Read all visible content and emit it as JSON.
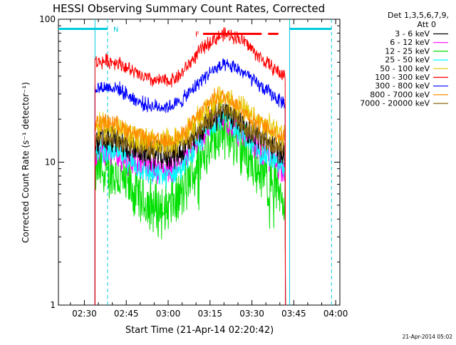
{
  "chart_data": {
    "type": "line",
    "title": "HESSI Observing Summary Count Rates, Corrected",
    "xlabel": "Start Time (21-Apr-14 02:20:42)",
    "ylabel": "Corrected Count Rate (s⁻¹ detector⁻¹)",
    "yscale": "log",
    "ylim": [
      1,
      100
    ],
    "xlim_minutes": [
      20.7,
      121.5
    ],
    "x_ticks": [
      {
        "label": "02:30",
        "minute": 30
      },
      {
        "label": "02:45",
        "minute": 45
      },
      {
        "label": "03:00",
        "minute": 60
      },
      {
        "label": "03:15",
        "minute": 75
      },
      {
        "label": "03:30",
        "minute": 90
      },
      {
        "label": "03:45",
        "minute": 105
      },
      {
        "label": "04:00",
        "minute": 120
      }
    ],
    "y_ticks": [
      {
        "label": "1",
        "value": 1
      },
      {
        "label": "10",
        "value": 10
      },
      {
        "label": "100",
        "value": 100
      }
    ],
    "legend_header": [
      "Det 1,3,5,6,7,9,",
      "Att 0"
    ],
    "legend_position": "right",
    "data_start_minute": 33.8,
    "data_end_minute": 102.0,
    "series": [
      {
        "name": "3 - 6 keV",
        "color": "#000000",
        "points": [
          [
            34,
            14
          ],
          [
            40,
            14.5
          ],
          [
            45,
            13
          ],
          [
            50,
            12
          ],
          [
            55,
            11
          ],
          [
            60,
            11
          ],
          [
            65,
            12
          ],
          [
            70,
            15
          ],
          [
            75,
            20
          ],
          [
            78,
            22
          ],
          [
            82,
            22
          ],
          [
            86,
            19
          ],
          [
            90,
            16
          ],
          [
            95,
            14
          ],
          [
            100,
            12
          ],
          [
            102,
            11
          ]
        ]
      },
      {
        "name": "6 - 12 keV",
        "color": "#ff00ff",
        "points": [
          [
            34,
            12
          ],
          [
            40,
            11.5
          ],
          [
            45,
            10.5
          ],
          [
            50,
            9.8
          ],
          [
            55,
            9.2
          ],
          [
            60,
            9
          ],
          [
            65,
            10
          ],
          [
            70,
            13
          ],
          [
            75,
            18
          ],
          [
            78,
            19.5
          ],
          [
            82,
            19
          ],
          [
            86,
            16
          ],
          [
            90,
            13
          ],
          [
            95,
            11
          ],
          [
            100,
            9.5
          ],
          [
            102,
            9
          ]
        ]
      },
      {
        "name": "12 - 25 keV",
        "color": "#00e000",
        "points": [
          [
            34,
            9
          ],
          [
            40,
            8.5
          ],
          [
            45,
            7
          ],
          [
            50,
            5.5
          ],
          [
            55,
            4.8
          ],
          [
            60,
            4.8
          ],
          [
            65,
            6
          ],
          [
            70,
            9.5
          ],
          [
            75,
            15
          ],
          [
            78,
            17
          ],
          [
            82,
            16
          ],
          [
            86,
            13
          ],
          [
            90,
            10
          ],
          [
            95,
            8
          ],
          [
            100,
            6.5
          ],
          [
            102,
            6
          ]
        ]
      },
      {
        "name": "25 - 50 keV",
        "color": "#00ffff",
        "points": [
          [
            34,
            12
          ],
          [
            40,
            12
          ],
          [
            45,
            10.5
          ],
          [
            50,
            9
          ],
          [
            55,
            8
          ],
          [
            60,
            8
          ],
          [
            65,
            9
          ],
          [
            70,
            12.5
          ],
          [
            75,
            18
          ],
          [
            78,
            20
          ],
          [
            82,
            19.5
          ],
          [
            86,
            16
          ],
          [
            90,
            13
          ],
          [
            95,
            11
          ],
          [
            100,
            9.5
          ],
          [
            102,
            9
          ]
        ]
      },
      {
        "name": "50 - 100 keV",
        "color": "#e8c800",
        "points": [
          [
            34,
            18
          ],
          [
            40,
            17.5
          ],
          [
            45,
            16
          ],
          [
            50,
            14.5
          ],
          [
            55,
            14
          ],
          [
            60,
            14
          ],
          [
            65,
            15
          ],
          [
            70,
            19
          ],
          [
            75,
            25
          ],
          [
            78,
            28
          ],
          [
            82,
            27.5
          ],
          [
            86,
            24
          ],
          [
            90,
            20
          ],
          [
            95,
            18
          ],
          [
            100,
            16
          ],
          [
            102,
            15
          ]
        ]
      },
      {
        "name": "100 - 300 keV",
        "color": "#ff0000",
        "points": [
          [
            34,
            50
          ],
          [
            38,
            51
          ],
          [
            42,
            50
          ],
          [
            45,
            46
          ],
          [
            50,
            40
          ],
          [
            55,
            37
          ],
          [
            60,
            37
          ],
          [
            64,
            40
          ],
          [
            68,
            50
          ],
          [
            72,
            62
          ],
          [
            76,
            72
          ],
          [
            80,
            78
          ],
          [
            84,
            76
          ],
          [
            88,
            68
          ],
          [
            92,
            56
          ],
          [
            96,
            48
          ],
          [
            100,
            42
          ],
          [
            102,
            40
          ]
        ]
      },
      {
        "name": "300 - 800 keV",
        "color": "#0000ff",
        "points": [
          [
            34,
            33
          ],
          [
            38,
            33.5
          ],
          [
            42,
            33
          ],
          [
            45,
            30
          ],
          [
            50,
            26
          ],
          [
            55,
            24.5
          ],
          [
            60,
            24.5
          ],
          [
            64,
            26
          ],
          [
            68,
            31
          ],
          [
            72,
            38
          ],
          [
            76,
            44
          ],
          [
            80,
            47
          ],
          [
            84,
            46
          ],
          [
            88,
            41
          ],
          [
            92,
            35
          ],
          [
            96,
            31
          ],
          [
            100,
            27
          ],
          [
            102,
            26
          ]
        ]
      },
      {
        "name": "800 - 7000 keV",
        "color": "#ff8c00",
        "points": [
          [
            34,
            19
          ],
          [
            40,
            19
          ],
          [
            45,
            17
          ],
          [
            50,
            15
          ],
          [
            55,
            14
          ],
          [
            60,
            14
          ],
          [
            65,
            15.5
          ],
          [
            70,
            20
          ],
          [
            75,
            27
          ],
          [
            78,
            29
          ],
          [
            82,
            28
          ],
          [
            86,
            24
          ],
          [
            90,
            20
          ],
          [
            95,
            17.5
          ],
          [
            100,
            15.5
          ],
          [
            102,
            15
          ]
        ]
      },
      {
        "name": "7000 - 20000 keV",
        "color": "#8b6914",
        "points": [
          [
            34,
            15
          ],
          [
            40,
            15
          ],
          [
            45,
            14
          ],
          [
            50,
            13
          ],
          [
            55,
            12.5
          ],
          [
            60,
            12.5
          ],
          [
            65,
            13.5
          ],
          [
            70,
            16
          ],
          [
            75,
            21
          ],
          [
            78,
            23
          ],
          [
            82,
            22
          ],
          [
            86,
            19
          ],
          [
            90,
            16
          ],
          [
            95,
            14
          ],
          [
            100,
            13
          ],
          [
            102,
            12.5
          ]
        ]
      }
    ],
    "annotations": [
      {
        "label": "N",
        "kind": "night",
        "color": "#00ccdd",
        "segments": [
          [
            20.7,
            38.3
          ],
          [
            103.5,
            118.5
          ]
        ]
      },
      {
        "label": "F",
        "kind": "flare",
        "color": "#ff0000",
        "start_minute": 72.5,
        "end_minute": 99.5
      }
    ],
    "vertical_markers": [
      {
        "minute": 33.8,
        "style": "solid",
        "color": "#00ccdd"
      },
      {
        "minute": 38.3,
        "style": "dashed",
        "color": "#00ccdd"
      },
      {
        "minute": 103.5,
        "style": "solid",
        "color": "#00ccdd"
      },
      {
        "minute": 118.5,
        "style": "dashed",
        "color": "#00ccdd"
      }
    ]
  },
  "footer": {
    "timestamp": "21-Apr-2014 05:02"
  }
}
